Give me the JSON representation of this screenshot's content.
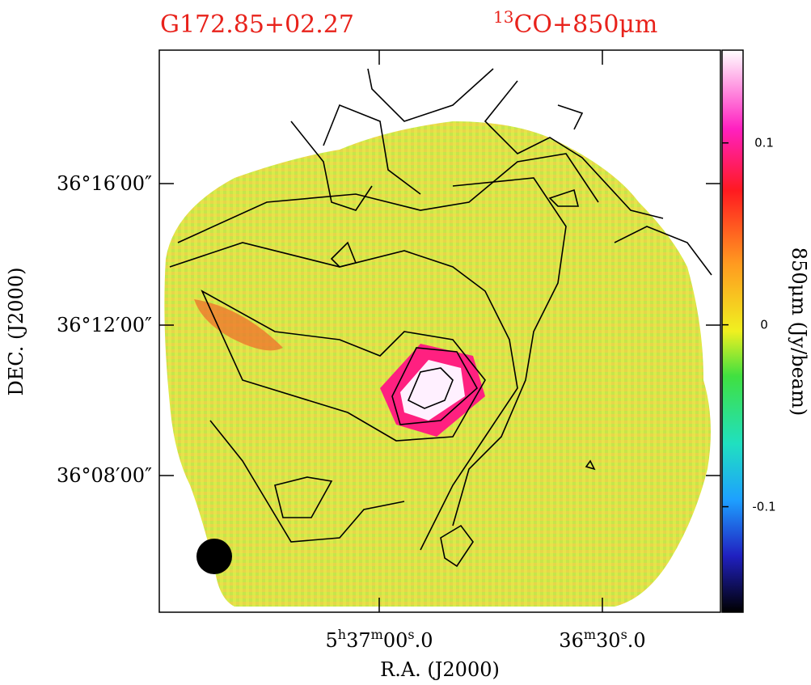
{
  "header": {
    "source": "G172.85+02.27",
    "tracer": {
      "sup": "13",
      "text": "CO+850μm"
    }
  },
  "axes": {
    "x_label": "R.A. (J2000)",
    "y_label": "DEC. (J2000)",
    "x_ticks": [
      [
        {
          "t": "5"
        },
        {
          "sup": "h"
        },
        {
          "t": "37"
        },
        {
          "sup": "m"
        },
        {
          "t": "00"
        },
        {
          "sup": "s"
        },
        {
          "t": ".0"
        }
      ],
      [
        {
          "t": "36"
        },
        {
          "sup": "m"
        },
        {
          "t": "30"
        },
        {
          "sup": "s"
        },
        {
          "t": ".0"
        }
      ]
    ],
    "y_ticks": [
      "36°16′00″",
      "36°12′00″",
      "36°08′00″"
    ]
  },
  "colorbar": {
    "label": "850μm (Jy/beam)",
    "lim": [
      -0.158,
      0.151
    ],
    "ticks": [
      0.1,
      0,
      -0.1
    ]
  }
}
